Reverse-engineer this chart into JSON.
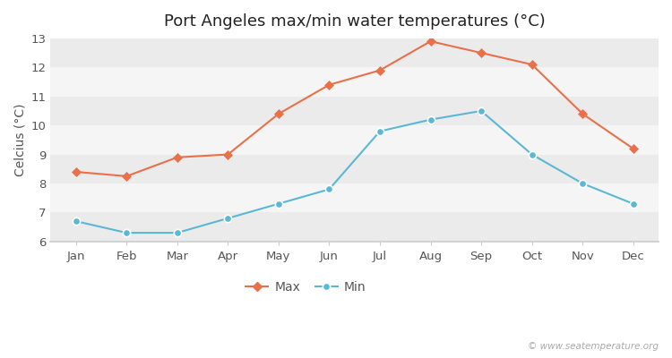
{
  "title": "Port Angeles max/min water temperatures (°C)",
  "ylabel": "Celcius (°C)",
  "months": [
    "Jan",
    "Feb",
    "Mar",
    "Apr",
    "May",
    "Jun",
    "Jul",
    "Aug",
    "Sep",
    "Oct",
    "Nov",
    "Dec"
  ],
  "max_temps": [
    8.4,
    8.25,
    8.9,
    9.0,
    10.4,
    11.4,
    11.9,
    12.9,
    12.5,
    12.1,
    10.4,
    9.2
  ],
  "min_temps": [
    6.7,
    6.3,
    6.3,
    6.8,
    7.3,
    7.8,
    9.8,
    10.2,
    10.5,
    9.0,
    8.0,
    7.3
  ],
  "max_color": "#e8714a",
  "min_color": "#5ab8d4",
  "bg_color": "#ffffff",
  "plot_bg_color": "#ffffff",
  "band_color_light": "#ebebeb",
  "band_color_white": "#f5f5f5",
  "ylim": [
    6.0,
    13.0
  ],
  "yticks": [
    6,
    7,
    8,
    9,
    10,
    11,
    12,
    13
  ],
  "legend_labels": [
    "Max",
    "Min"
  ],
  "watermark": "© www.seatemperature.org",
  "title_fontsize": 13,
  "axis_label_fontsize": 10,
  "tick_fontsize": 9.5,
  "legend_fontsize": 10
}
